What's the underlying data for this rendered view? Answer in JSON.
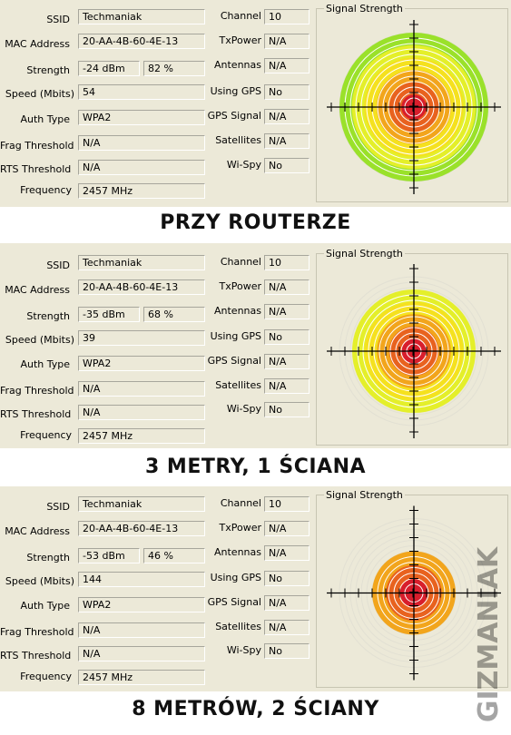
{
  "labels": {
    "ssid": "SSID",
    "mac": "MAC Address",
    "strength": "Strength",
    "speed": "Speed (Mbits)",
    "auth": "Auth Type",
    "frag": "Frag Threshold",
    "rts": "RTS Threshold",
    "freq": "Frequency",
    "channel": "Channel",
    "txpower": "TxPower",
    "antennas": "Antennas",
    "gps": "Using GPS",
    "gps_signal": "GPS Signal",
    "satellites": "Satellites",
    "wispy": "Wi-Spy",
    "signal_strength": "Signal Strength"
  },
  "panels": [
    {
      "ssid": "Techmaniak",
      "mac": "20-AA-4B-60-4E-13",
      "dbm": "-24 dBm",
      "percent": "82 %",
      "speed": "54",
      "auth": "WPA2",
      "frag": "N/A",
      "rts": "N/A",
      "freq": "2457 MHz",
      "channel": "10",
      "txpower": "N/A",
      "antennas": "N/A",
      "gps": "No",
      "gps_signal": "N/A",
      "satellites": "N/A",
      "wispy": "No",
      "signal_level": 0.82,
      "caption": "PRZY ROUTERZE"
    },
    {
      "ssid": "Techmaniak",
      "mac": "20-AA-4B-60-4E-13",
      "dbm": "-35 dBm",
      "percent": "68 %",
      "speed": "39",
      "auth": "WPA2",
      "frag": "N/A",
      "rts": "N/A",
      "freq": "2457 MHz",
      "channel": "10",
      "txpower": "N/A",
      "antennas": "N/A",
      "gps": "No",
      "gps_signal": "N/A",
      "satellites": "N/A",
      "wispy": "No",
      "signal_level": 0.68,
      "caption": "3 METRY, 1 ŚCIANA"
    },
    {
      "ssid": "Techmaniak",
      "mac": "20-AA-4B-60-4E-13",
      "dbm": "-53 dBm",
      "percent": "46 %",
      "speed": "144",
      "auth": "WPA2",
      "frag": "N/A",
      "rts": "N/A",
      "freq": "2457 MHz",
      "channel": "10",
      "txpower": "N/A",
      "antennas": "N/A",
      "gps": "No",
      "gps_signal": "N/A",
      "satellites": "N/A",
      "wispy": "No",
      "signal_level": 0.46,
      "caption": "8 METRÓW, 2 ŚCIANY"
    }
  ],
  "ring_colors": [
    "#d81e2c",
    "#e8621f",
    "#f2a51c",
    "#f5e11f",
    "#e4ef2a",
    "#9ae12a"
  ],
  "watermark": "GIZMANIAK"
}
